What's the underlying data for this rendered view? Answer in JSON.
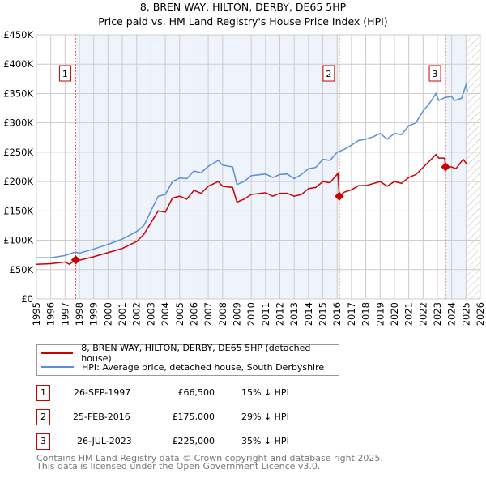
{
  "title": "8, BREN WAY, HILTON, DERBY, DE65 5HP",
  "subtitle": "Price paid vs. HM Land Registry's House Price Index (HPI)",
  "colors": {
    "property": "#cc0000",
    "hpi": "#5b8fd6",
    "shade": "#eef3fc"
  },
  "chart_data": {
    "type": "line",
    "title": "8, BREN WAY, HILTON, DERBY, DE65 5HP",
    "xlim": [
      1995,
      2026
    ],
    "ylim": [
      0,
      450000
    ],
    "yticks": [
      {
        "v": 0,
        "label": "£0"
      },
      {
        "v": 50000,
        "label": "£50K"
      },
      {
        "v": 100000,
        "label": "£100K"
      },
      {
        "v": 150000,
        "label": "£150K"
      },
      {
        "v": 200000,
        "label": "£200K"
      },
      {
        "v": 250000,
        "label": "£250K"
      },
      {
        "v": 300000,
        "label": "£300K"
      },
      {
        "v": 350000,
        "label": "£350K"
      },
      {
        "v": 400000,
        "label": "£400K"
      },
      {
        "v": 450000,
        "label": "£450K"
      }
    ],
    "xticks": [
      "1995",
      "1996",
      "1997",
      "1998",
      "1999",
      "2000",
      "2001",
      "2002",
      "2003",
      "2004",
      "2005",
      "2006",
      "2007",
      "2008",
      "2009",
      "2010",
      "2011",
      "2012",
      "2013",
      "2014",
      "2015",
      "2016",
      "2017",
      "2018",
      "2019",
      "2020",
      "2021",
      "2022",
      "2023",
      "2024",
      "2025",
      "2026"
    ],
    "series": [
      {
        "name": "8, BREN WAY, HILTON, DERBY, DE65 5HP (detached house)",
        "color": "#cc0000",
        "points": [
          [
            1995,
            59
          ],
          [
            1996,
            60
          ],
          [
            1997,
            63
          ],
          [
            1997.3,
            59
          ],
          [
            1997.74,
            66.5
          ],
          [
            1998,
            66
          ],
          [
            1999,
            72
          ],
          [
            2000,
            79
          ],
          [
            2001,
            86
          ],
          [
            2002,
            98
          ],
          [
            2002.5,
            110
          ],
          [
            2003,
            130
          ],
          [
            2003.5,
            150
          ],
          [
            2004,
            148
          ],
          [
            2004.5,
            172
          ],
          [
            2005,
            175
          ],
          [
            2005.5,
            170
          ],
          [
            2006,
            185
          ],
          [
            2006.5,
            180
          ],
          [
            2007,
            192
          ],
          [
            2007.7,
            200
          ],
          [
            2008,
            192
          ],
          [
            2008.7,
            190
          ],
          [
            2009,
            165
          ],
          [
            2009.5,
            170
          ],
          [
            2010,
            178
          ],
          [
            2011,
            181
          ],
          [
            2011.5,
            175
          ],
          [
            2012,
            180
          ],
          [
            2012.5,
            180
          ],
          [
            2013,
            175
          ],
          [
            2013.5,
            178
          ],
          [
            2014,
            188
          ],
          [
            2014.5,
            190
          ],
          [
            2015,
            200
          ],
          [
            2015.5,
            198
          ],
          [
            2016.05,
            214
          ],
          [
            2016.15,
            175
          ],
          [
            2016.5,
            182
          ],
          [
            2017,
            186
          ],
          [
            2017.5,
            193
          ],
          [
            2018,
            193
          ],
          [
            2019,
            200
          ],
          [
            2019.5,
            192
          ],
          [
            2020,
            200
          ],
          [
            2020.5,
            197
          ],
          [
            2021,
            207
          ],
          [
            2021.5,
            212
          ],
          [
            2022,
            224
          ],
          [
            2022.9,
            246
          ],
          [
            2023.1,
            240
          ],
          [
            2023.5,
            240
          ],
          [
            2023.57,
            225
          ],
          [
            2024,
            225
          ],
          [
            2024.3,
            222
          ],
          [
            2024.8,
            238
          ],
          [
            2025.05,
            230
          ]
        ]
      },
      {
        "name": "HPI: Average price, detached house, South Derbyshire",
        "color": "#5b8fd6",
        "points": [
          [
            1995,
            70
          ],
          [
            1996,
            70
          ],
          [
            1997,
            74
          ],
          [
            1997.7,
            80
          ],
          [
            1998,
            78
          ],
          [
            1999,
            85
          ],
          [
            2000,
            93
          ],
          [
            2001,
            102
          ],
          [
            2002,
            115
          ],
          [
            2002.5,
            125
          ],
          [
            2003,
            150
          ],
          [
            2003.5,
            175
          ],
          [
            2004,
            178
          ],
          [
            2004.5,
            200
          ],
          [
            2005,
            206
          ],
          [
            2005.5,
            205
          ],
          [
            2006,
            218
          ],
          [
            2006.5,
            215
          ],
          [
            2007,
            226
          ],
          [
            2007.7,
            236
          ],
          [
            2008,
            228
          ],
          [
            2008.7,
            225
          ],
          [
            2009,
            195
          ],
          [
            2009.5,
            200
          ],
          [
            2010,
            210
          ],
          [
            2011,
            213
          ],
          [
            2011.5,
            207
          ],
          [
            2012,
            212
          ],
          [
            2012.5,
            213
          ],
          [
            2013,
            205
          ],
          [
            2013.5,
            212
          ],
          [
            2014,
            222
          ],
          [
            2014.5,
            224
          ],
          [
            2015,
            238
          ],
          [
            2015.5,
            236
          ],
          [
            2016,
            250
          ],
          [
            2016.5,
            255
          ],
          [
            2017,
            262
          ],
          [
            2017.5,
            270
          ],
          [
            2018,
            272
          ],
          [
            2018.5,
            276
          ],
          [
            2019,
            282
          ],
          [
            2019.5,
            272
          ],
          [
            2020,
            282
          ],
          [
            2020.5,
            280
          ],
          [
            2021,
            295
          ],
          [
            2021.5,
            300
          ],
          [
            2022,
            320
          ],
          [
            2022.5,
            335
          ],
          [
            2022.9,
            350
          ],
          [
            2023.1,
            338
          ],
          [
            2023.5,
            343
          ],
          [
            2024,
            345
          ],
          [
            2024.2,
            338
          ],
          [
            2024.7,
            342
          ],
          [
            2025,
            365
          ],
          [
            2025.1,
            353
          ]
        ]
      }
    ],
    "sales": [
      {
        "n": "1",
        "x": 1997.74,
        "price": 66500
      },
      {
        "n": "2",
        "x": 2016.15,
        "price": 175000
      },
      {
        "n": "3",
        "x": 2023.57,
        "price": 225000
      }
    ],
    "data_end": 2025.1
  },
  "legend": [
    "8, BREN WAY, HILTON, DERBY, DE65 5HP (detached house)",
    "HPI: Average price, detached house, South Derbyshire"
  ],
  "transactions": [
    {
      "n": "1",
      "date": "26-SEP-1997",
      "price": "£66,500",
      "hpi": "15% ↓ HPI"
    },
    {
      "n": "2",
      "date": "25-FEB-2016",
      "price": "£175,000",
      "hpi": "29% ↓ HPI"
    },
    {
      "n": "3",
      "date": "26-JUL-2023",
      "price": "£225,000",
      "hpi": "35% ↓ HPI"
    }
  ],
  "footer": [
    "Contains HM Land Registry data © Crown copyright and database right 2025.",
    "This data is licensed under the Open Government Licence v3.0."
  ]
}
